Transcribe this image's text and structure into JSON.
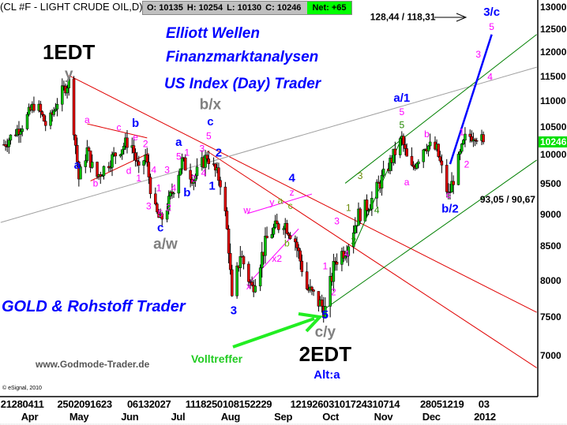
{
  "header": {
    "symbol_title": "(CL #F - LIGHT CRUDE OIL,D)",
    "open": "O: 10135",
    "high": "H: 10254",
    "low": "L: 10130",
    "close": "C: 10246",
    "net": "Net: +65",
    "net_color": "#00ff00"
  },
  "branding": {
    "line1": "Elliott Wellen",
    "line2": "Finanzmarktanalysen",
    "line3": "US Index (Day) Trader",
    "gold": "GOLD & Rohstoff Trader",
    "website": "www.Godmode-Trader.de",
    "copyright": "© eSignal, 2010",
    "volltreffer": "Volltreffer"
  },
  "chart_data": {
    "type": "candlestick",
    "title": "(CL #F - LIGHT CRUDE OIL,D)",
    "y_scale": "log",
    "ylim": [
      6700,
      13200
    ],
    "y_ticks": [
      "13000",
      "12500",
      "12000",
      "11500",
      "11000",
      "10500",
      "10000",
      "9500",
      "9000",
      "8500",
      "8000",
      "7500",
      "7000"
    ],
    "last_price": "10246",
    "last_price_color": "#00e000",
    "up_color": "#00c000",
    "down_color": "#e00000",
    "x_tick_row1": [
      {
        "text": "21280411",
        "date": "2011-03-19"
      },
      {
        "text": "2502091623",
        "date": "2011-04-22"
      },
      {
        "text": "06132027",
        "date": "2011-06-03"
      },
      {
        "text": "1118250108152229",
        "date": "2011-07-08"
      },
      {
        "text": "12192603101724310714",
        "date": "2011-09-09"
      },
      {
        "text": "28051219",
        "date": "2011-11-26"
      },
      {
        "text": "03",
        "date": "2011-12-31"
      }
    ],
    "x_tick_row2": [
      {
        "text": "Apr",
        "date": "2011-04-06"
      },
      {
        "text": "May",
        "date": "2011-05-05"
      },
      {
        "text": "Jun",
        "date": "2011-06-05"
      },
      {
        "text": "Jul",
        "date": "2011-07-05"
      },
      {
        "text": "Aug",
        "date": "2011-08-04"
      },
      {
        "text": "Sep",
        "date": "2011-09-05"
      },
      {
        "text": "Oct",
        "date": "2011-10-04"
      },
      {
        "text": "Nov",
        "date": "2011-11-04"
      },
      {
        "text": "Dec",
        "date": "2011-12-03"
      },
      {
        "text": "2012",
        "date": "2012-01-03"
      }
    ],
    "close_path": [
      [
        "2011-03-21",
        10200
      ],
      [
        "2011-04-02",
        10600
      ],
      [
        "2011-04-09",
        11000
      ],
      [
        "2011-04-16",
        10500
      ],
      [
        "2011-04-23",
        11100
      ],
      [
        "2011-04-29",
        11400
      ],
      [
        "2011-05-02",
        10500
      ],
      [
        "2011-05-05",
        9600
      ],
      [
        "2011-05-10",
        10100
      ],
      [
        "2011-05-15",
        9600
      ],
      [
        "2011-05-29",
        10100
      ],
      [
        "2011-06-05",
        10300
      ],
      [
        "2011-06-10",
        9700
      ],
      [
        "2011-06-14",
        10000
      ],
      [
        "2011-06-19",
        9100
      ],
      [
        "2011-06-23",
        8900
      ],
      [
        "2011-06-28",
        9200
      ],
      [
        "2011-07-06",
        9900
      ],
      [
        "2011-07-13",
        9600
      ],
      [
        "2011-07-21",
        10000
      ],
      [
        "2011-07-30",
        9500
      ],
      [
        "2011-08-03",
        8500
      ],
      [
        "2011-08-05",
        7700
      ],
      [
        "2011-08-10",
        8400
      ],
      [
        "2011-08-17",
        7900
      ],
      [
        "2011-08-27",
        8700
      ],
      [
        "2011-09-05",
        8900
      ],
      [
        "2011-09-12",
        8600
      ],
      [
        "2011-09-19",
        7900
      ],
      [
        "2011-09-30",
        7600
      ],
      [
        "2011-10-06",
        8300
      ],
      [
        "2011-10-13",
        8500
      ],
      [
        "2011-10-20",
        9000
      ],
      [
        "2011-10-27",
        9200
      ],
      [
        "2011-11-05",
        9700
      ],
      [
        "2011-11-15",
        10300
      ],
      [
        "2011-11-20",
        9700
      ],
      [
        "2011-11-29",
        10200
      ],
      [
        "2011-12-06",
        10100
      ],
      [
        "2011-12-13",
        9300
      ],
      [
        "2011-12-18",
        9800
      ],
      [
        "2011-12-23",
        10300
      ],
      [
        "2011-12-29",
        10400
      ],
      [
        "2012-01-03",
        10246
      ]
    ],
    "trendlines": [
      {
        "from": [
          "2011-04-29",
          11530
        ],
        "to": [
          "2012-02-04",
          7570
        ],
        "color": "#e00000",
        "width": 1
      },
      {
        "from": [
          "2011-07-21",
          10080
        ],
        "to": [
          "2012-02-04",
          6860
        ],
        "color": "#e00000",
        "width": 1
      },
      {
        "from": [
          "2011-03-19",
          8880
        ],
        "to": [
          "2012-02-04",
          11700
        ],
        "color": "#a0a0a0",
        "width": 1
      },
      {
        "from": [
          "2011-10-12",
          9520
        ],
        "to": [
          "2012-02-04",
          12400
        ],
        "color": "#008000",
        "width": 1
      },
      {
        "from": [
          "2011-09-30",
          7620
        ],
        "to": [
          "2012-02-04",
          9920
        ],
        "color": "#008000",
        "width": 1
      },
      {
        "from": [
          "2011-10-17",
          8500
        ],
        "to": [
          "2011-11-15",
          10320
        ],
        "color": "#008000",
        "width": 1
      },
      {
        "from": [
          "2011-12-14",
          9850
        ],
        "to": [
          "2012-01-08",
          12400
        ],
        "color": "#0000ff",
        "width": 2.5
      },
      {
        "from": [
          "2011-05-10",
          10580
        ],
        "to": [
          "2011-06-15",
          10320
        ],
        "color": "#e00000",
        "width": 1
      },
      {
        "from": [
          "2011-05-12",
          9560
        ],
        "to": [
          "2011-06-16",
          10040
        ],
        "color": "#e00000",
        "width": 1
      },
      {
        "from": [
          "2011-08-14",
          9020
        ],
        "to": [
          "2011-09-22",
          9340
        ],
        "color": "#ff00ff",
        "width": 1
      },
      {
        "from": [
          "2011-08-15",
          7970
        ],
        "to": [
          "2011-09-14",
          8780
        ],
        "color": "#ff00ff",
        "width": 1
      }
    ],
    "annotations": [
      {
        "text": "1EDT",
        "date": "2011-04-29",
        "price": 12020,
        "color": "#000000",
        "size": "big"
      },
      {
        "text": "y",
        "date": "2011-04-29",
        "price": 11620,
        "color": "#808080",
        "size": "mid"
      },
      {
        "text": "a",
        "date": "2011-05-04",
        "price": 9840,
        "color": "#0000ff",
        "size": "sm"
      },
      {
        "text": "a",
        "date": "2011-05-10",
        "price": 10660,
        "color": "#ff00ff",
        "size": "xs"
      },
      {
        "text": "b",
        "date": "2011-05-15",
        "price": 9520,
        "color": "#ff00ff",
        "size": "xs"
      },
      {
        "text": "c",
        "date": "2011-05-29",
        "price": 10520,
        "color": "#ff00ff",
        "size": "xs"
      },
      {
        "text": "b",
        "date": "2011-06-08",
        "price": 10600,
        "color": "#0000ff",
        "size": "sm"
      },
      {
        "text": "e",
        "date": "2011-06-08",
        "price": 10390,
        "color": "#ff00ff",
        "size": "xs"
      },
      {
        "text": "2",
        "date": "2011-06-14",
        "price": 10210,
        "color": "#ff00ff",
        "size": "xs"
      },
      {
        "text": "d",
        "date": "2011-06-04",
        "price": 9740,
        "color": "#ff00ff",
        "size": "xs"
      },
      {
        "text": "1",
        "date": "2011-06-10",
        "price": 9610,
        "color": "#ff00ff",
        "size": "xs"
      },
      {
        "text": "3",
        "date": "2011-06-16",
        "price": 9140,
        "color": "#ff00ff",
        "size": "xs"
      },
      {
        "text": "4",
        "date": "2011-06-19",
        "price": 9750,
        "color": "#ff00ff",
        "size": "xs"
      },
      {
        "text": "1",
        "date": "2011-06-22",
        "price": 9440,
        "color": "#ff00ff",
        "size": "xs"
      },
      {
        "text": "5",
        "date": "2011-06-23",
        "price": 9020,
        "color": "#ff00ff",
        "size": "xs"
      },
      {
        "text": "c",
        "date": "2011-06-23",
        "price": 8880,
        "color": "#0000ff",
        "size": "sm"
      },
      {
        "text": "2",
        "date": "2011-06-28",
        "price": 9120,
        "color": "#ff00ff",
        "size": "xs"
      },
      {
        "text": "3",
        "date": "2011-06-27",
        "price": 9750,
        "color": "#ff00ff",
        "size": "xs"
      },
      {
        "text": "4",
        "date": "2011-07-01",
        "price": 9440,
        "color": "#ff00ff",
        "size": "xs"
      },
      {
        "text": "a/w",
        "date": "2011-06-26",
        "price": 8660,
        "color": "#808080",
        "size": "mid"
      },
      {
        "text": "a",
        "date": "2011-07-04",
        "price": 10250,
        "color": "#0000ff",
        "size": "sm"
      },
      {
        "text": "5",
        "date": "2011-07-04",
        "price": 10060,
        "color": "#ff00ff",
        "size": "xs"
      },
      {
        "text": "1",
        "date": "2011-07-09",
        "price": 10060,
        "color": "#ff00ff",
        "size": "xs"
      },
      {
        "text": "b",
        "date": "2011-07-09",
        "price": 9370,
        "color": "#0000ff",
        "size": "sm"
      },
      {
        "text": "2",
        "date": "2011-07-13",
        "price": 9470,
        "color": "#ff00ff",
        "size": "xs"
      },
      {
        "text": "3",
        "date": "2011-07-18",
        "price": 10130,
        "color": "#ff00ff",
        "size": "xs"
      },
      {
        "text": "4",
        "date": "2011-07-19",
        "price": 9700,
        "color": "#ff00ff",
        "size": "xs"
      },
      {
        "text": "5",
        "date": "2011-07-22",
        "price": 10230,
        "color": "#ff00ff",
        "size": "xs"
      },
      {
        "text": "c",
        "date": "2011-07-23",
        "price": 10420,
        "color": "#0000ff",
        "size": "sm"
      },
      {
        "text": "b/x",
        "date": "2011-07-23",
        "price": 10640,
        "color": "#808080",
        "size": "mid"
      },
      {
        "text": "2",
        "date": "2011-07-28",
        "price": 10060,
        "color": "#0000ff",
        "size": "sm"
      },
      {
        "text": "1",
        "date": "2011-07-24",
        "price": 9480,
        "color": "#0000ff",
        "size": "sm"
      },
      {
        "text": "3",
        "date": "2011-08-06",
        "price": 7600,
        "color": "#0000ff",
        "size": "sm"
      },
      {
        "text": "w",
        "date": "2011-08-14",
        "price": 9080,
        "color": "#ff00ff",
        "size": "xs"
      },
      {
        "text": "x",
        "date": "2011-08-15",
        "price": 7930,
        "color": "#ff00ff",
        "size": "xs"
      },
      {
        "text": "x2",
        "date": "2011-09-01",
        "price": 8330,
        "color": "#ff00ff",
        "size": "xs"
      },
      {
        "text": "y",
        "date": "2011-08-29",
        "price": 9210,
        "color": "#ff00ff",
        "size": "xs"
      },
      {
        "text": "a",
        "date": "2011-09-03",
        "price": 9230,
        "color": "#66aa00",
        "size": "xs"
      },
      {
        "text": "z",
        "date": "2011-09-10",
        "price": 9370,
        "color": "#ff00ff",
        "size": "xs"
      },
      {
        "text": "c",
        "date": "2011-09-09",
        "price": 9240,
        "color": "#66aa00",
        "size": "xs"
      },
      {
        "text": "b",
        "date": "2011-09-07",
        "price": 8560,
        "color": "#66aa00",
        "size": "xs"
      },
      {
        "text": "4",
        "date": "2011-09-10",
        "price": 9520,
        "color": "#0000ff",
        "size": "sm"
      },
      {
        "text": "3",
        "date": "2011-10-07",
        "price": 8900,
        "color": "#ff00ff",
        "size": "xs"
      },
      {
        "text": "1",
        "date": "2011-09-30",
        "price": 8220,
        "color": "#ff00ff",
        "size": "xs"
      },
      {
        "text": "2",
        "date": "2011-10-05",
        "price": 7850,
        "color": "#ff00ff",
        "size": "xs"
      },
      {
        "text": "5",
        "date": "2011-09-30",
        "price": 7540,
        "color": "#0000ff",
        "size": "sm"
      },
      {
        "text": "c/y",
        "date": "2011-09-30",
        "price": 7340,
        "color": "#808080",
        "size": "mid"
      },
      {
        "text": "2EDT",
        "date": "2011-09-30",
        "price": 7070,
        "color": "#000000",
        "size": "big"
      },
      {
        "text": "Alt:a",
        "date": "2011-10-01",
        "price": 6800,
        "color": "#0000ff",
        "size": "sm"
      },
      {
        "text": "1",
        "date": "2011-10-14",
        "price": 9120,
        "color": "#668800",
        "size": "xs"
      },
      {
        "text": "4",
        "date": "2011-10-13",
        "price": 8400,
        "color": "#ff00ff",
        "size": "xs"
      },
      {
        "text": "2",
        "date": "2011-10-17",
        "price": 8500,
        "color": "#228800",
        "size": "xs"
      },
      {
        "text": "3",
        "date": "2011-10-21",
        "price": 9650,
        "color": "#668800",
        "size": "xs"
      },
      {
        "text": "4",
        "date": "2011-10-31",
        "price": 9080,
        "color": "#228800",
        "size": "xs"
      },
      {
        "text": "5",
        "date": "2011-11-15",
        "price": 10560,
        "color": "#228800",
        "size": "xs"
      },
      {
        "text": "5",
        "date": "2011-11-15",
        "price": 10780,
        "color": "#ff00ff",
        "size": "xs"
      },
      {
        "text": "a/1",
        "date": "2011-11-15",
        "price": 11010,
        "color": "#0000ff",
        "size": "sm"
      },
      {
        "text": "a",
        "date": "2011-11-18",
        "price": 9540,
        "color": "#ff00ff",
        "size": "xs"
      },
      {
        "text": "b",
        "date": "2011-11-30",
        "price": 10390,
        "color": "#ff00ff",
        "size": "xs"
      },
      {
        "text": "c",
        "date": "2011-12-13",
        "price": 9330,
        "color": "#ff00ff",
        "size": "xs"
      },
      {
        "text": "b/2",
        "date": "2011-12-14",
        "price": 9120,
        "color": "#0000ff",
        "size": "sm"
      },
      {
        "text": "1",
        "date": "2011-12-21",
        "price": 10430,
        "color": "#ff00ff",
        "size": "xs"
      },
      {
        "text": "2",
        "date": "2011-12-24",
        "price": 9850,
        "color": "#ff00ff",
        "size": "xs"
      },
      {
        "text": "3",
        "date": "2011-12-31",
        "price": 11970,
        "color": "#ff00ff",
        "size": "xs"
      },
      {
        "text": "4",
        "date": "2012-01-07",
        "price": 11500,
        "color": "#ff00ff",
        "size": "xs"
      },
      {
        "text": "5",
        "date": "2012-01-08",
        "price": 12570,
        "color": "#ff00ff",
        "size": "xs"
      },
      {
        "text": "3/c",
        "date": "2012-01-08",
        "price": 12910,
        "color": "#0000ff",
        "size": "sm"
      },
      {
        "text": "93,05 / 90,67",
        "date": "2012-01-01",
        "price": 9250,
        "color": "#000000",
        "size": "note"
      },
      {
        "text": "128,44 / 118,31",
        "date": "2011-10-27",
        "price": 12800,
        "color": "#000000",
        "size": "note"
      }
    ]
  }
}
